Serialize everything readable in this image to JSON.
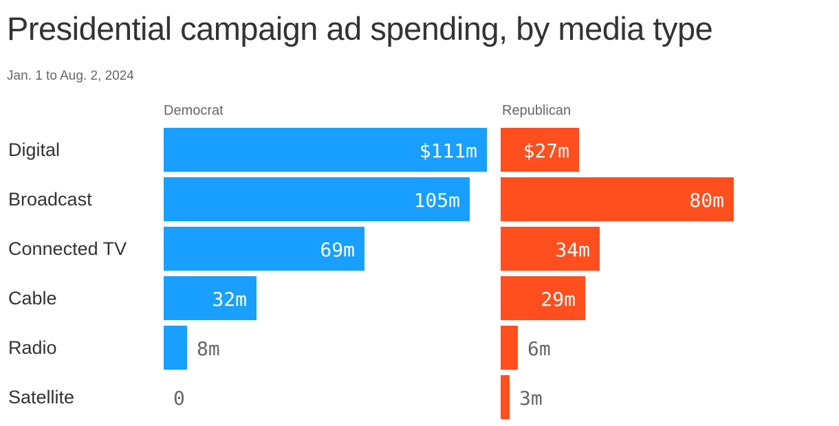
{
  "chart_data": {
    "type": "bar",
    "orientation": "horizontal",
    "title": "Presidential campaign ad spending, by media type",
    "subtitle": "Jan. 1 to Aug. 2, 2024",
    "categories": [
      "Digital",
      "Broadcast",
      "Connected TV",
      "Cable",
      "Radio",
      "Satellite"
    ],
    "series": [
      {
        "name": "Democrat",
        "color": "#189fff",
        "values": [
          111,
          105,
          69,
          32,
          8,
          0
        ],
        "labels": [
          "$111m",
          "105m",
          "69m",
          "32m",
          "8m",
          "0"
        ]
      },
      {
        "name": "Republican",
        "color": "#ff4f1f",
        "values": [
          27,
          80,
          34,
          29,
          6,
          3
        ],
        "labels": [
          "$27m",
          "80m",
          "34m",
          "29m",
          "6m",
          "3m"
        ]
      }
    ],
    "unit": "millions of dollars",
    "grid": false,
    "legend": "none"
  }
}
